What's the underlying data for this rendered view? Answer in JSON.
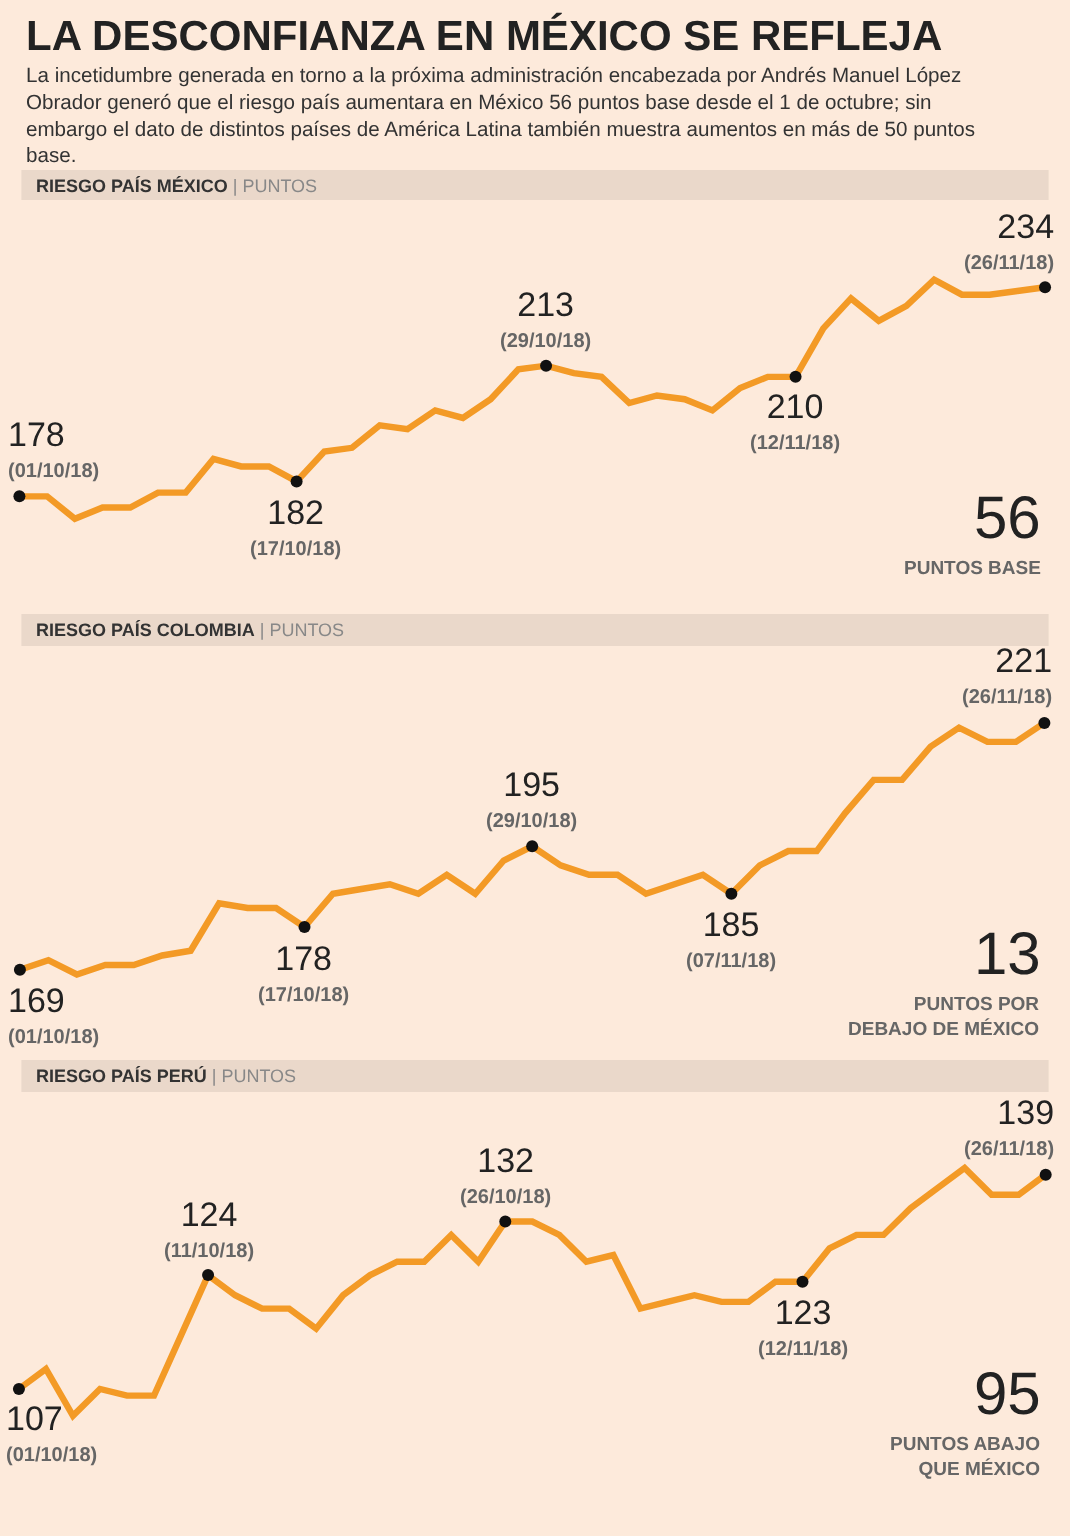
{
  "chart_data": [
    {
      "type": "other",
      "title": "LA DESCONFIANZA EN MÉXICO SE REFLEJA",
      "subtitle": "La incetidumbre generada en torno a la próxima administración encabezada por Andrés Manuel López Obrador generó que el riesgo país aumentara en México 56 puntos base desde el 1 de octubre; sin embargo el dato de distintos países de América Latina también muestra aumentos en más de 50 puntos base."
    },
    {
      "type": "line",
      "title": "RIESGO PAÍS MÉXICO",
      "subtitle": "| PUNTOS",
      "tick_labels": false,
      "categories": [
        null,
        null,
        null,
        null,
        null,
        null,
        null,
        null,
        null,
        null,
        null,
        null,
        null,
        null,
        null,
        null,
        null,
        null,
        null,
        null,
        null,
        null,
        null,
        null,
        null,
        null,
        null,
        null,
        null,
        null,
        null,
        null,
        null,
        null,
        null,
        null,
        null,
        null
      ],
      "series": [
        {
          "color": "#f39a26",
          "values": [
            178,
            178,
            172,
            175,
            175,
            179,
            179,
            188,
            186,
            186,
            182,
            190,
            191,
            197,
            196,
            201,
            199,
            204,
            212,
            213,
            211,
            210,
            203,
            205,
            204,
            201,
            207,
            210,
            210,
            223,
            231,
            225,
            229,
            236,
            232,
            232,
            233,
            234
          ],
          "value_labels": [
            "178\n(01/10/18)",
            null,
            null,
            null,
            null,
            null,
            null,
            null,
            null,
            null,
            "182\n(17/10/18)",
            null,
            null,
            null,
            null,
            null,
            null,
            null,
            null,
            "213\n(29/10/18)",
            null,
            null,
            null,
            null,
            null,
            null,
            null,
            null,
            "210\n(12/11/18)",
            null,
            null,
            null,
            null,
            null,
            null,
            null,
            null,
            "234\n(26/11/18)"
          ]
        }
      ],
      "annotations": [
        "56",
        "PUNTOS BASE"
      ]
    },
    {
      "type": "line",
      "title": "RIESGO PAÍS COLOMBIA",
      "subtitle": "| PUNTOS",
      "tick_labels": false,
      "categories": [
        null,
        null,
        null,
        null,
        null,
        null,
        null,
        null,
        null,
        null,
        null,
        null,
        null,
        null,
        null,
        null,
        null,
        null,
        null,
        null,
        null,
        null,
        null,
        null,
        null,
        null,
        null,
        null,
        null,
        null,
        null,
        null,
        null,
        null,
        null,
        null,
        null
      ],
      "series": [
        {
          "color": "#f39a26",
          "values": [
            169,
            171,
            168,
            170,
            170,
            172,
            173,
            183,
            182,
            182,
            178,
            185,
            186,
            187,
            185,
            189,
            185,
            192,
            195,
            191,
            189,
            189,
            185,
            187,
            189,
            185,
            191,
            194,
            194,
            202,
            209,
            209,
            216,
            220,
            217,
            217,
            221
          ],
          "value_labels": [
            "169\n(01/10/18)",
            null,
            null,
            null,
            null,
            null,
            null,
            null,
            null,
            null,
            "178\n(17/10/18)",
            null,
            null,
            null,
            null,
            null,
            null,
            null,
            "195\n(29/10/18)",
            null,
            null,
            null,
            null,
            null,
            null,
            "185\n(07/11/18)",
            null,
            null,
            null,
            null,
            null,
            null,
            null,
            null,
            null,
            null,
            "221\n(26/11/18)"
          ]
        }
      ],
      "annotations": [
        "13",
        "PUNTOS POR\nDEBAJO DE MÉXICO"
      ]
    },
    {
      "type": "line",
      "title": "RIESGO PAÍS PERÚ",
      "subtitle": "| PUNTOS",
      "tick_labels": false,
      "categories": [
        null,
        null,
        null,
        null,
        null,
        null,
        null,
        null,
        null,
        null,
        null,
        null,
        null,
        null,
        null,
        null,
        null,
        null,
        null,
        null,
        null,
        null,
        null,
        null,
        null,
        null,
        null,
        null,
        null,
        null,
        null,
        null,
        null,
        null,
        null,
        null,
        null,
        null,
        null
      ],
      "series": [
        {
          "color": "#f39a26",
          "values": [
            107,
            110,
            103,
            107,
            106,
            106,
            115,
            124,
            121,
            119,
            119,
            116,
            121,
            124,
            126,
            126,
            130,
            126,
            132,
            132,
            130,
            126,
            127,
            119,
            120,
            121,
            120,
            120,
            123,
            123,
            128,
            130,
            130,
            134,
            137,
            140,
            136,
            136,
            139
          ],
          "value_labels": [
            "107\n(01/10/18)",
            null,
            null,
            null,
            null,
            null,
            null,
            "124\n(11/10/18)",
            null,
            null,
            null,
            null,
            null,
            null,
            null,
            null,
            null,
            null,
            "132\n(26/10/18)",
            null,
            null,
            null,
            null,
            null,
            null,
            null,
            null,
            null,
            null,
            "123\n(12/11/18)",
            null,
            null,
            null,
            null,
            null,
            null,
            null,
            null,
            "139\n(26/11/18)"
          ]
        }
      ],
      "annotations": [
        "95",
        "PUNTOS ABAJO\nQUE MÉXICO"
      ]
    }
  ]
}
